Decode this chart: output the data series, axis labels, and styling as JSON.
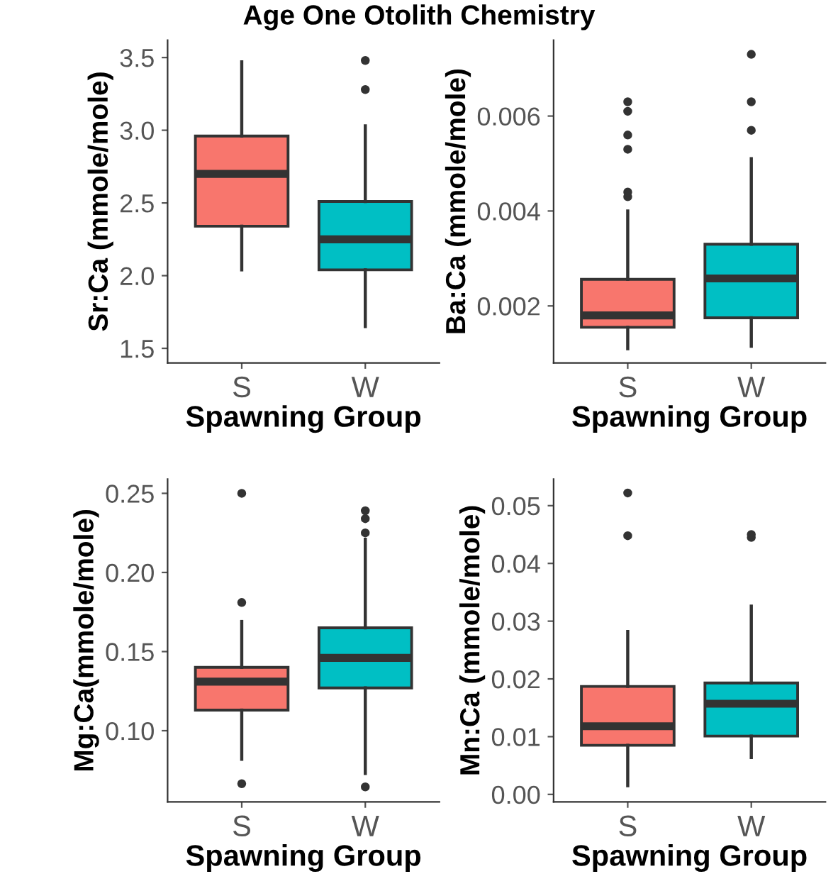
{
  "chart_data": [
    {
      "type": "box",
      "title": "Age One Otolith Chemistry",
      "categories": [
        "S",
        "W"
      ],
      "xlabel": "Spawning Group",
      "ylabel": "Sr:Ca (mmole/mole)",
      "colors": [
        "#f8766d",
        "#00bfc4"
      ],
      "ylim": [
        1.4,
        3.62
      ],
      "yticks": [
        1.5,
        {
          "value": 2.0,
          "label": "2.0"
        },
        2.5,
        {
          "value": 3.0,
          "label": "3.0"
        },
        3.5
      ],
      "grid": false,
      "legend": false,
      "boxes": [
        {
          "low": 2.04,
          "q1": 2.34,
          "median": 2.7,
          "q3": 2.96,
          "high": 3.47
        },
        {
          "low": 1.65,
          "q1": 2.04,
          "median": 2.25,
          "q3": 2.51,
          "high": 3.03,
          "outliers": [
            3.28,
            3.48
          ]
        }
      ]
    },
    {
      "type": "box",
      "categories": [
        "S",
        "W"
      ],
      "xlabel": "Spawning Group",
      "ylabel": "Ba:Ca (mmole/mole)",
      "colors": [
        "#f8766d",
        "#00bfc4"
      ],
      "ylim": [
        0.0008,
        0.0076
      ],
      "yticks": [
        0.002,
        0.004,
        0.006
      ],
      "grid": false,
      "legend": false,
      "boxes": [
        {
          "low": 0.0011,
          "q1": 0.00155,
          "median": 0.0018,
          "q3": 0.00256,
          "high": 0.004,
          "outliers": [
            0.0043,
            0.0044,
            0.0053,
            0.0056,
            0.0061,
            0.0063
          ]
        },
        {
          "low": 0.00115,
          "q1": 0.00175,
          "median": 0.00258,
          "q3": 0.0033,
          "high": 0.0051,
          "outliers": [
            0.0057,
            0.0063,
            0.0073
          ]
        }
      ]
    },
    {
      "type": "box",
      "categories": [
        "S",
        "W"
      ],
      "xlabel": "Spawning Group",
      "ylabel": "Mg:Ca(mmole/mole)",
      "colors": [
        "#f8766d",
        "#00bfc4"
      ],
      "ylim": [
        0.055,
        0.259
      ],
      "yticks": [
        {
          "value": 0.1,
          "label": "0.10"
        },
        0.15,
        {
          "value": 0.2,
          "label": "0.20"
        },
        0.25
      ],
      "grid": false,
      "legend": false,
      "boxes": [
        {
          "low": 0.082,
          "q1": 0.113,
          "median": 0.131,
          "q3": 0.14,
          "high": 0.169,
          "outliers": [
            0.0665,
            0.181,
            0.25
          ]
        },
        {
          "low": 0.073,
          "q1": 0.127,
          "median": 0.146,
          "q3": 0.165,
          "high": 0.221,
          "outliers": [
            0.0645,
            0.225,
            0.234,
            0.239
          ]
        }
      ]
    },
    {
      "type": "box",
      "categories": [
        "S",
        "W"
      ],
      "xlabel": "Spawning Group",
      "ylabel": "Mn:Ca (mmole/mole)",
      "colors": [
        "#f8766d",
        "#00bfc4"
      ],
      "ylim": [
        -0.0013,
        0.0546
      ],
      "yticks": [
        {
          "value": 0,
          "label": "0.00"
        },
        0.01,
        0.02,
        0.03,
        0.04,
        0.05
      ],
      "grid": false,
      "legend": false,
      "boxes": [
        {
          "low": 0.0015,
          "q1": 0.0085,
          "median": 0.0118,
          "q3": 0.0187,
          "high": 0.0282,
          "outliers": [
            0.0448,
            0.0522
          ]
        },
        {
          "low": 0.0064,
          "q1": 0.0101,
          "median": 0.0157,
          "q3": 0.0193,
          "high": 0.0326,
          "outliers": [
            0.0445,
            0.045
          ]
        }
      ]
    }
  ]
}
